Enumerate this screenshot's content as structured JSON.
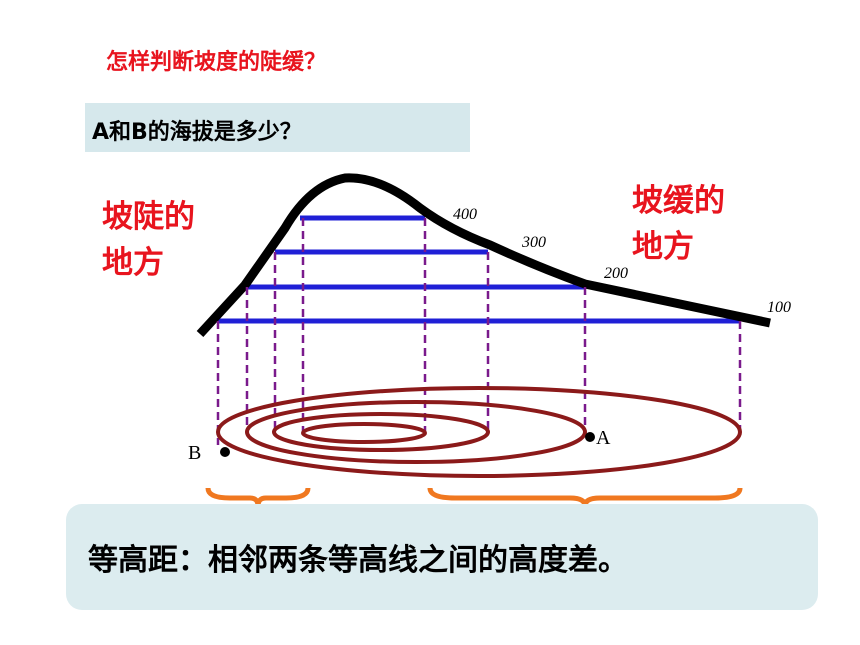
{
  "header": {
    "title": "怎样判断坡度的陡缓？"
  },
  "question": "A和B的海拔是多少？",
  "steep_label": [
    "坡陡的",
    "地方"
  ],
  "gentle_label": [
    "坡缓的",
    "地方"
  ],
  "contour_labels": [
    "400",
    "300",
    "200",
    "100"
  ],
  "points": [
    "A",
    "B"
  ],
  "definition": "等高距：相邻两条等高线之间的高度差。"
}
